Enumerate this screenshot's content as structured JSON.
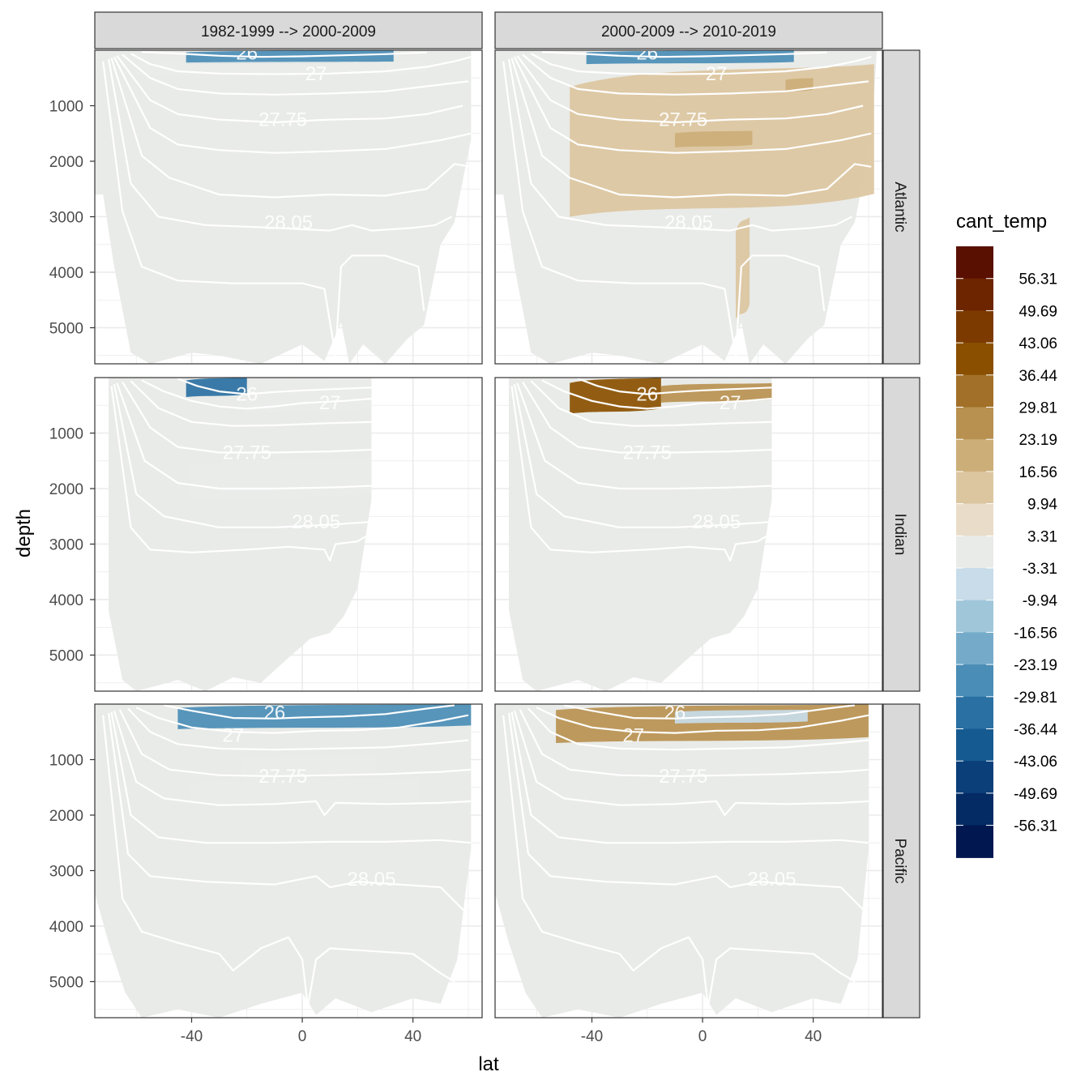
{
  "chart_data": {
    "type": "contour-section",
    "title": "",
    "xlabel": "lat",
    "ylabel": "depth",
    "xlim": [
      -75,
      65
    ],
    "ylim": [
      5650,
      0
    ],
    "x_ticks": [
      "-40",
      "0",
      "40"
    ],
    "x_tick_values": [
      -40,
      0,
      40
    ],
    "y_ticks": [
      "1000",
      "2000",
      "3000",
      "4000",
      "5000"
    ],
    "y_tick_values": [
      1000,
      2000,
      3000,
      4000,
      5000
    ],
    "columns": [
      "1982-1999 --> 2000-2009",
      "2000-2009 --> 2010-2019"
    ],
    "rows": [
      "Atlantic",
      "Indian",
      "Pacific"
    ],
    "isopycnal_labels": [
      "26",
      "27",
      "27.75",
      "28.05"
    ],
    "legend": {
      "title": "cant_temp",
      "breaks": [
        "56.31",
        "49.69",
        "43.06",
        "36.44",
        "29.81",
        "23.19",
        "16.56",
        "9.94",
        "3.31",
        "-3.31",
        "-9.94",
        "-16.56",
        "-23.19",
        "-29.81",
        "-36.44",
        "-43.06",
        "-49.69",
        "-56.31"
      ],
      "colors": [
        "#5a1000",
        "#6d2500",
        "#7c3a00",
        "#8a5000",
        "#a27028",
        "#b89150",
        "#ccae78",
        "#dcc6a0",
        "#e9ddc9",
        "#e9ebe8",
        "#c8dce9",
        "#a0c6da",
        "#75abc9",
        "#4a8db6",
        "#2a70a2",
        "#155a91",
        "#0a3f7a",
        "#042b64",
        "#00174f"
      ]
    },
    "panels": [
      {
        "region": "Atlantic",
        "period": "1982-1999 --> 2000-2009",
        "coverage_lat": [
          -75,
          61
        ],
        "features": [
          {
            "kind": "negative",
            "class": -29.81,
            "lat": [
              -42,
              33
            ],
            "depth": [
              0,
              250
            ]
          },
          {
            "kind": "negative",
            "class": -3.31,
            "lat": [
              -60,
              45
            ],
            "depth": [
              200,
              450
            ]
          }
        ]
      },
      {
        "region": "Atlantic",
        "period": "2000-2009 --> 2010-2019",
        "coverage_lat": [
          -75,
          63
        ],
        "features": [
          {
            "kind": "negative",
            "class": -29.81,
            "lat": [
              -42,
              33
            ],
            "depth": [
              0,
              250
            ]
          },
          {
            "kind": "positive",
            "class": 9.94,
            "lat": [
              -48,
              62
            ],
            "depth": [
              250,
              3000
            ]
          },
          {
            "kind": "positive",
            "class": 16.56,
            "lat": [
              -10,
              18
            ],
            "depth": [
              1450,
              1750
            ]
          },
          {
            "kind": "positive",
            "class": 16.56,
            "lat": [
              30,
              40
            ],
            "depth": [
              500,
              750
            ]
          },
          {
            "kind": "positive",
            "class": 9.94,
            "lat": [
              12,
              17
            ],
            "depth": [
              3000,
              4850
            ]
          }
        ]
      },
      {
        "region": "Indian",
        "period": "1982-1999 --> 2000-2009",
        "coverage_lat": [
          -70,
          25
        ],
        "features": [
          {
            "kind": "negative",
            "class": -36.44,
            "lat": [
              -42,
              -20
            ],
            "depth": [
              0,
              350
            ]
          },
          {
            "kind": "negative",
            "class": -3.31,
            "lat": [
              -20,
              25
            ],
            "depth": [
              0,
              650
            ]
          },
          {
            "kind": "negative",
            "class": -3.31,
            "lat": [
              -40,
              25
            ],
            "depth": [
              1450,
              2200
            ]
          }
        ]
      },
      {
        "region": "Indian",
        "period": "2000-2009 --> 2010-2019",
        "coverage_lat": [
          -70,
          25
        ],
        "features": [
          {
            "kind": "positive",
            "class": 36.44,
            "lat": [
              -48,
              -15
            ],
            "depth": [
              0,
              650
            ]
          },
          {
            "kind": "positive",
            "class": 23.19,
            "lat": [
              -15,
              25
            ],
            "depth": [
              100,
              450
            ]
          }
        ]
      },
      {
        "region": "Pacific",
        "period": "1982-1999 --> 2000-2009",
        "coverage_lat": [
          -75,
          61
        ],
        "features": [
          {
            "kind": "negative",
            "class": -29.81,
            "lat": [
              -45,
              62
            ],
            "depth": [
              0,
              450
            ]
          },
          {
            "kind": "negative",
            "class": -3.31,
            "lat": [
              -22,
              27
            ],
            "depth": [
              900,
              1300
            ]
          },
          {
            "kind": "negative",
            "class": -3.31,
            "lat": [
              -40,
              42
            ],
            "depth": [
              1350,
              1800
            ]
          }
        ]
      },
      {
        "region": "Pacific",
        "period": "2000-2009 --> 2010-2019",
        "coverage_lat": [
          -75,
          60
        ],
        "features": [
          {
            "kind": "positive",
            "class": 23.19,
            "lat": [
              -53,
              60
            ],
            "depth": [
              0,
              700
            ]
          },
          {
            "kind": "negative",
            "class": -9.94,
            "lat": [
              -10,
              38
            ],
            "depth": [
              100,
              350
            ]
          }
        ]
      }
    ]
  }
}
